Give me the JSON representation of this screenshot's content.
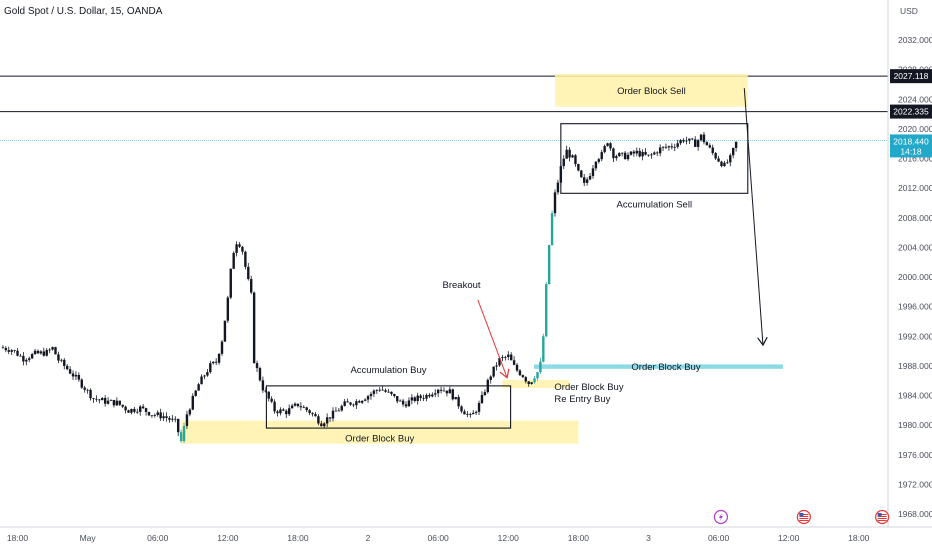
{
  "header": {
    "title": "Gold Spot / U.S. Dollar, 15, OANDA",
    "currency": "USD"
  },
  "colors": {
    "candle": "#131722",
    "highlight_candle": "#26a69a",
    "zone_yellow": "#fff2a8",
    "zone_cyan": "#7fd6e3",
    "current_price_bg": "#22a9c9",
    "line_black": "#131722",
    "event_red": "#e53935",
    "event_flag_purple": "#b13bd1"
  },
  "chart_data": {
    "type": "candlestick",
    "title": "Gold Spot / U.S. Dollar, 15, OANDA",
    "ylabel": "USD",
    "ylim": [
      1966,
      2036
    ],
    "y_ticks": [
      "2032.000",
      "2028.000",
      "2024.000",
      "2020.000",
      "2016.000",
      "2012.000",
      "2008.000",
      "2004.000",
      "2000.000",
      "1996.000",
      "1992.000",
      "1988.000",
      "1984.000",
      "1980.000",
      "1976.000",
      "1972.000",
      "1968.000"
    ],
    "x_ticks": [
      "18:00",
      "May",
      "06:00",
      "12:00",
      "18:00",
      "2",
      "06:00",
      "12:00",
      "18:00",
      "3",
      "06:00",
      "12:00",
      "18:00"
    ],
    "x_tick_hours": [
      -6,
      0,
      6,
      12,
      18,
      24,
      30,
      36,
      42,
      48,
      54,
      60,
      66
    ],
    "x_range_hours": [
      -7.5,
      68.5
    ],
    "grid": false,
    "price_series": [
      [
        -7.5,
        1990.5
      ],
      [
        -6.5,
        1990.2
      ],
      [
        -5.5,
        1989.0
      ],
      [
        -4.5,
        1989.6
      ],
      [
        -3.5,
        1989.8
      ],
      [
        -3.0,
        1990.4
      ],
      [
        -2.5,
        1988.8
      ],
      [
        -1.5,
        1987.2
      ],
      [
        -0.5,
        1985.5
      ],
      [
        0.5,
        1983.6
      ],
      [
        1.5,
        1983.2
      ],
      [
        2.5,
        1983.0
      ],
      [
        3.5,
        1982.0
      ],
      [
        4.5,
        1982.3
      ],
      [
        5.5,
        1981.5
      ],
      [
        6.5,
        1981.2
      ],
      [
        7.5,
        1980.4
      ],
      [
        8.0,
        1977.8
      ],
      [
        8.5,
        1981.5
      ],
      [
        9.0,
        1983.5
      ],
      [
        9.5,
        1985.5
      ],
      [
        10.0,
        1986.8
      ],
      [
        10.5,
        1988.0
      ],
      [
        11.0,
        1988.5
      ],
      [
        11.5,
        1991.5
      ],
      [
        12.0,
        1997.0
      ],
      [
        12.4,
        2003.0
      ],
      [
        12.8,
        2005.0
      ],
      [
        13.2,
        2004.0
      ],
      [
        13.6,
        2000.5
      ],
      [
        14.0,
        1997.5
      ],
      [
        14.2,
        1989.0
      ],
      [
        14.6,
        1987.0
      ],
      [
        15.0,
        1985.0
      ],
      [
        15.5,
        1983.5
      ],
      [
        16.0,
        1982.0
      ],
      [
        17.0,
        1981.8
      ],
      [
        18.0,
        1982.8
      ],
      [
        19.0,
        1981.8
      ],
      [
        20.0,
        1980.3
      ],
      [
        21.0,
        1981.5
      ],
      [
        22.0,
        1982.8
      ],
      [
        23.0,
        1983.2
      ],
      [
        24.0,
        1984.0
      ],
      [
        25.0,
        1985.0
      ],
      [
        26.0,
        1984.0
      ],
      [
        27.0,
        1982.8
      ],
      [
        28.0,
        1983.5
      ],
      [
        29.0,
        1984.0
      ],
      [
        30.0,
        1985.0
      ],
      [
        31.0,
        1984.5
      ],
      [
        32.0,
        1982.2
      ],
      [
        32.8,
        1981.0
      ],
      [
        33.6,
        1983.0
      ],
      [
        34.4,
        1986.5
      ],
      [
        35.2,
        1988.8
      ],
      [
        36.0,
        1989.3
      ],
      [
        36.6,
        1987.6
      ],
      [
        37.2,
        1986.8
      ],
      [
        37.8,
        1985.6
      ],
      [
        38.3,
        1986.8
      ],
      [
        38.7,
        1987.5
      ],
      [
        39.0,
        1992.0
      ],
      [
        39.3,
        2000.0
      ],
      [
        39.6,
        2006.5
      ],
      [
        39.9,
        2010.5
      ],
      [
        40.2,
        2012.5
      ],
      [
        40.6,
        2015.5
      ],
      [
        41.0,
        2017.0
      ],
      [
        41.5,
        2016.0
      ],
      [
        42.0,
        2014.0
      ],
      [
        42.5,
        2012.4
      ],
      [
        43.0,
        2014.0
      ],
      [
        43.5,
        2016.0
      ],
      [
        44.0,
        2016.5
      ],
      [
        44.5,
        2018.4
      ],
      [
        45.0,
        2016.5
      ],
      [
        46.0,
        2016.3
      ],
      [
        47.0,
        2016.8
      ],
      [
        48.0,
        2016.2
      ],
      [
        49.0,
        2017.3
      ],
      [
        50.0,
        2017.7
      ],
      [
        51.0,
        2018.6
      ],
      [
        52.0,
        2018.0
      ],
      [
        52.5,
        2019.0
      ],
      [
        53.0,
        2017.8
      ],
      [
        53.5,
        2016.7
      ],
      [
        54.0,
        2015.8
      ],
      [
        54.5,
        2015.0
      ],
      [
        55.0,
        2016.0
      ],
      [
        55.5,
        2018.1
      ]
    ],
    "horizontal_lines": [
      {
        "price": 2027.118,
        "label": "2027.118"
      },
      {
        "price": 2022.335,
        "label": "2022.335"
      }
    ],
    "current_price": {
      "price": 2018.44,
      "label": "2018.440",
      "countdown": "14:18"
    },
    "zones": [
      {
        "name": "order-block-buy-1",
        "type": "yellow",
        "x": [
          8.0,
          42.0
        ],
        "y": [
          1977.5,
          1980.6
        ],
        "label": "Order Block Buy"
      },
      {
        "name": "order-block-buy-2",
        "type": "yellow",
        "x": [
          35.5,
          41.2
        ],
        "y": [
          1985.0,
          1986.1
        ],
        "label": "Order Block Buy",
        "sublabel": "Re Entry Buy"
      },
      {
        "name": "order-block-buy-3",
        "type": "cyan",
        "x": [
          38.2,
          59.5
        ],
        "y": [
          1987.6,
          1988.2
        ],
        "label": "Order Block Buy"
      },
      {
        "name": "order-block-sell",
        "type": "yellow",
        "x": [
          40.0,
          56.5
        ],
        "y": [
          2023.0,
          2027.4
        ],
        "label": "Order Block Sell"
      }
    ],
    "boxes": [
      {
        "name": "accumulation-buy",
        "x": [
          15.3,
          36.2
        ],
        "y": [
          1979.6,
          1985.3
        ],
        "label": "Accumulation Buy"
      },
      {
        "name": "accumulation-sell",
        "x": [
          40.5,
          56.5
        ],
        "y": [
          2011.3,
          2020.7
        ],
        "label": "Accumulation Sell"
      }
    ],
    "annotations": [
      {
        "name": "breakout-label",
        "text": "Breakout",
        "x": 32.0,
        "y": 1998.5
      }
    ],
    "arrows": [
      {
        "name": "breakout-arrow",
        "color": "red",
        "from": [
          33.4,
          1996.9
        ],
        "to": [
          35.9,
          1986.4
        ]
      },
      {
        "name": "sell-projection-arrow",
        "color": "black",
        "from": [
          56.2,
          2025.5
        ],
        "to": [
          57.8,
          1990.8
        ]
      }
    ],
    "events": [
      {
        "name": "event-bolt",
        "hour": 54.2
      },
      {
        "name": "event-us-flag-1",
        "hour": 61.3
      },
      {
        "name": "event-us-flag-2",
        "hour": 68.0
      }
    ]
  }
}
